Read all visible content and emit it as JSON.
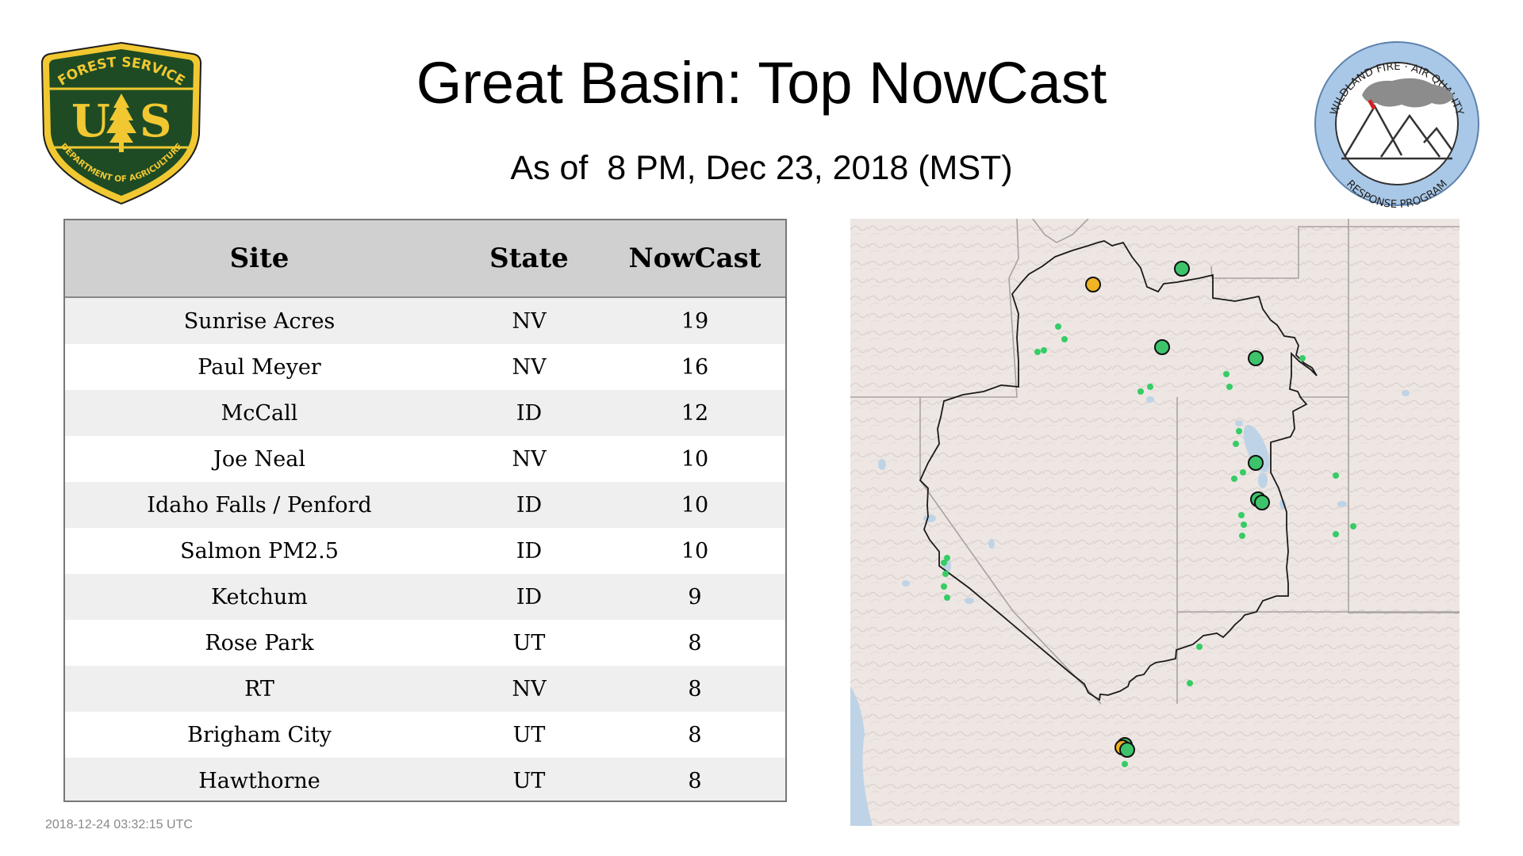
{
  "header": {
    "title": "Great Basin: Top NowCast",
    "subtitle": "As of  8 PM, Dec 23, 2018 (MST)"
  },
  "logos": {
    "usfs": {
      "top_text": "FOREST SERVICE",
      "letters": "US",
      "bottom_text": "DEPARTMENT OF AGRICULTURE"
    },
    "wfaq": {
      "top_text": "WILDLAND FIRE · AIR QUALITY",
      "bottom_text": "RESPONSE PROGRAM"
    }
  },
  "table": {
    "headers": {
      "site": "Site",
      "state": "State",
      "nowcast": "NowCast"
    },
    "rows": [
      {
        "site": "Sunrise Acres",
        "state": "NV",
        "nowcast": "19"
      },
      {
        "site": "Paul Meyer",
        "state": "NV",
        "nowcast": "16"
      },
      {
        "site": "McCall",
        "state": "ID",
        "nowcast": "12"
      },
      {
        "site": "Joe Neal",
        "state": "NV",
        "nowcast": "10"
      },
      {
        "site": "Idaho Falls / Penford",
        "state": "ID",
        "nowcast": "10"
      },
      {
        "site": "Salmon PM2.5",
        "state": "ID",
        "nowcast": "10"
      },
      {
        "site": "Ketchum",
        "state": "ID",
        "nowcast": "9"
      },
      {
        "site": "Rose Park",
        "state": "UT",
        "nowcast": "8"
      },
      {
        "site": "RT",
        "state": "NV",
        "nowcast": "8"
      },
      {
        "site": "Brigham City",
        "state": "UT",
        "nowcast": "8"
      },
      {
        "site": "Hawthorne",
        "state": "UT",
        "nowcast": "8"
      }
    ]
  },
  "map": {
    "colors": {
      "good": "#3dc46b",
      "moderate": "#f0b323",
      "small_site": "#36cc66",
      "land": "#ede6e3",
      "water": "#bfd3e6",
      "border": "#111111"
    }
  },
  "footer": {
    "timestamp": "2018-12-24 03:32:15 UTC"
  }
}
